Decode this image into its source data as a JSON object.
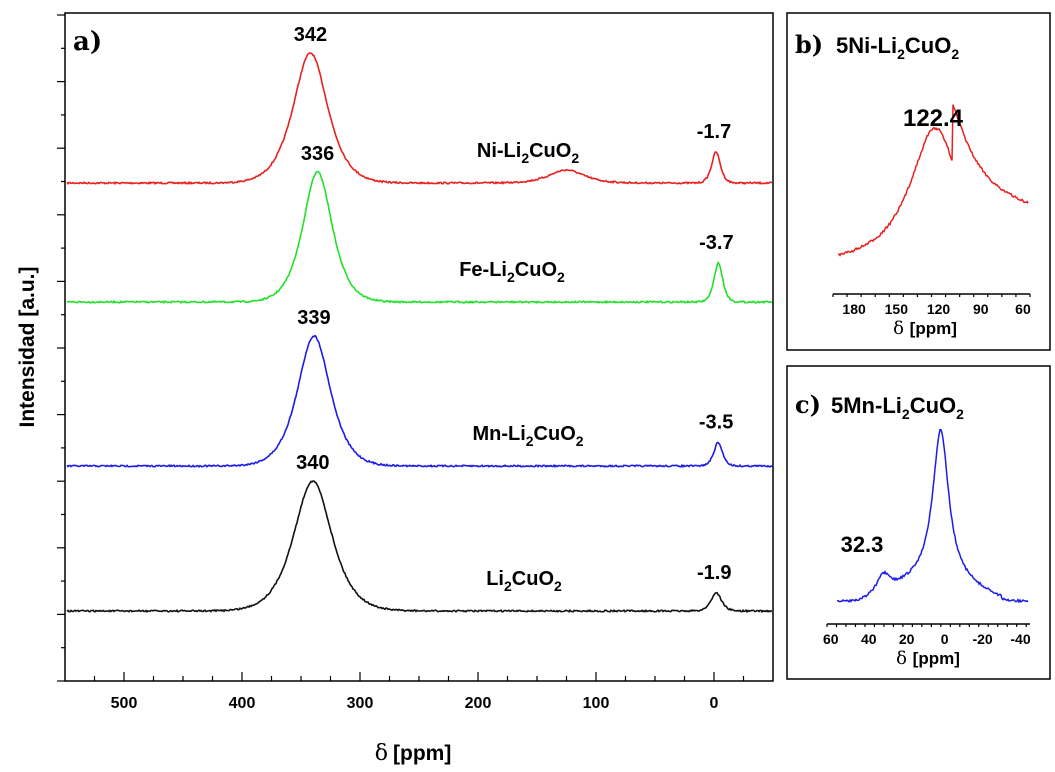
{
  "chart_data": [
    {
      "panel": "a)",
      "type": "line",
      "ylabel": "Intensidad [a.u.]",
      "xlabel_symbol": "δ",
      "xlabel_unit": "[ppm]",
      "xlim": [
        550,
        -50
      ],
      "xticks": [
        500,
        400,
        300,
        200,
        100,
        0
      ],
      "series": [
        {
          "name": "Ni-Li2CuO2",
          "label_main": "Ni-Li",
          "label_sub1": "2",
          "label_mid": "CuO",
          "label_sub2": "2",
          "color": "#e8201e",
          "baseline": 0,
          "offset": 3,
          "peaks": [
            {
              "x": 342,
              "h": 1.0,
              "w": 20
            },
            {
              "x": 125,
              "h": 0.1,
              "w": 20
            },
            {
              "x": -1.7,
              "h": 0.24,
              "w": 5
            }
          ],
          "labels": [
            "342",
            "-1.7"
          ]
        },
        {
          "name": "Fe-Li2CuO2",
          "label_main": "Fe-Li",
          "label_sub1": "2",
          "label_mid": "CuO",
          "label_sub2": "2",
          "color": "#22e02a",
          "baseline": 0,
          "offset": 2,
          "peaks": [
            {
              "x": 336,
              "h": 1.0,
              "w": 17
            },
            {
              "x": -3.7,
              "h": 0.3,
              "w": 5
            }
          ],
          "labels": [
            "336",
            "-3.7"
          ]
        },
        {
          "name": "Mn-Li2CuO2",
          "label_main": "Mn-Li",
          "label_sub1": "2",
          "label_mid": "CuO",
          "label_sub2": "2",
          "color": "#1c1ce8",
          "baseline": 0,
          "offset": 1,
          "peaks": [
            {
              "x": 339,
              "h": 1.0,
              "w": 19
            },
            {
              "x": -3.5,
              "h": 0.18,
              "w": 5
            }
          ],
          "labels": [
            "339",
            "-3.5"
          ]
        },
        {
          "name": "Li2CuO2",
          "label_main": "Li",
          "label_sub1": "2",
          "label_mid": "CuO",
          "label_sub2": "2",
          "color": "#111111",
          "baseline": 0,
          "offset": 0,
          "peaks": [
            {
              "x": 340,
              "h": 1.0,
              "w": 22
            },
            {
              "x": -1.9,
              "h": 0.14,
              "w": 6
            }
          ],
          "labels": [
            "340",
            "-1.9"
          ]
        }
      ]
    },
    {
      "panel": "b)",
      "title_main": "5Ni-Li",
      "title_sub1": "2",
      "title_mid": "CuO",
      "title_sub2": "2",
      "type": "line",
      "xlabel_symbol": "δ",
      "xlabel_unit": "[ppm]",
      "xlim": [
        195,
        55
      ],
      "xticks": [
        180,
        150,
        120,
        90,
        60
      ],
      "color": "#e8201e",
      "peak_label": "122.4",
      "series": [
        {
          "name": "5Ni-Li2CuO2",
          "peaks": [
            {
              "x": 122.4,
              "h": 1.0,
              "w": 22
            }
          ]
        }
      ]
    },
    {
      "panel": "c)",
      "title_main": "5Mn-Li",
      "title_sub1": "2",
      "title_mid": "CuO",
      "title_sub2": "2",
      "type": "line",
      "xlabel_symbol": "δ",
      "xlabel_unit": "[ppm]",
      "xlim": [
        62,
        -45
      ],
      "xticks": [
        60,
        40,
        20,
        0,
        -20,
        -40
      ],
      "color": "#1c1ce8",
      "peak_label": "32.3",
      "series": [
        {
          "name": "5Mn-Li2CuO2",
          "peaks": [
            {
              "x": 2,
              "h": 1.0,
              "w": 5
            },
            {
              "x": 32.3,
              "h": 0.12,
              "w": 4
            }
          ]
        }
      ]
    }
  ]
}
